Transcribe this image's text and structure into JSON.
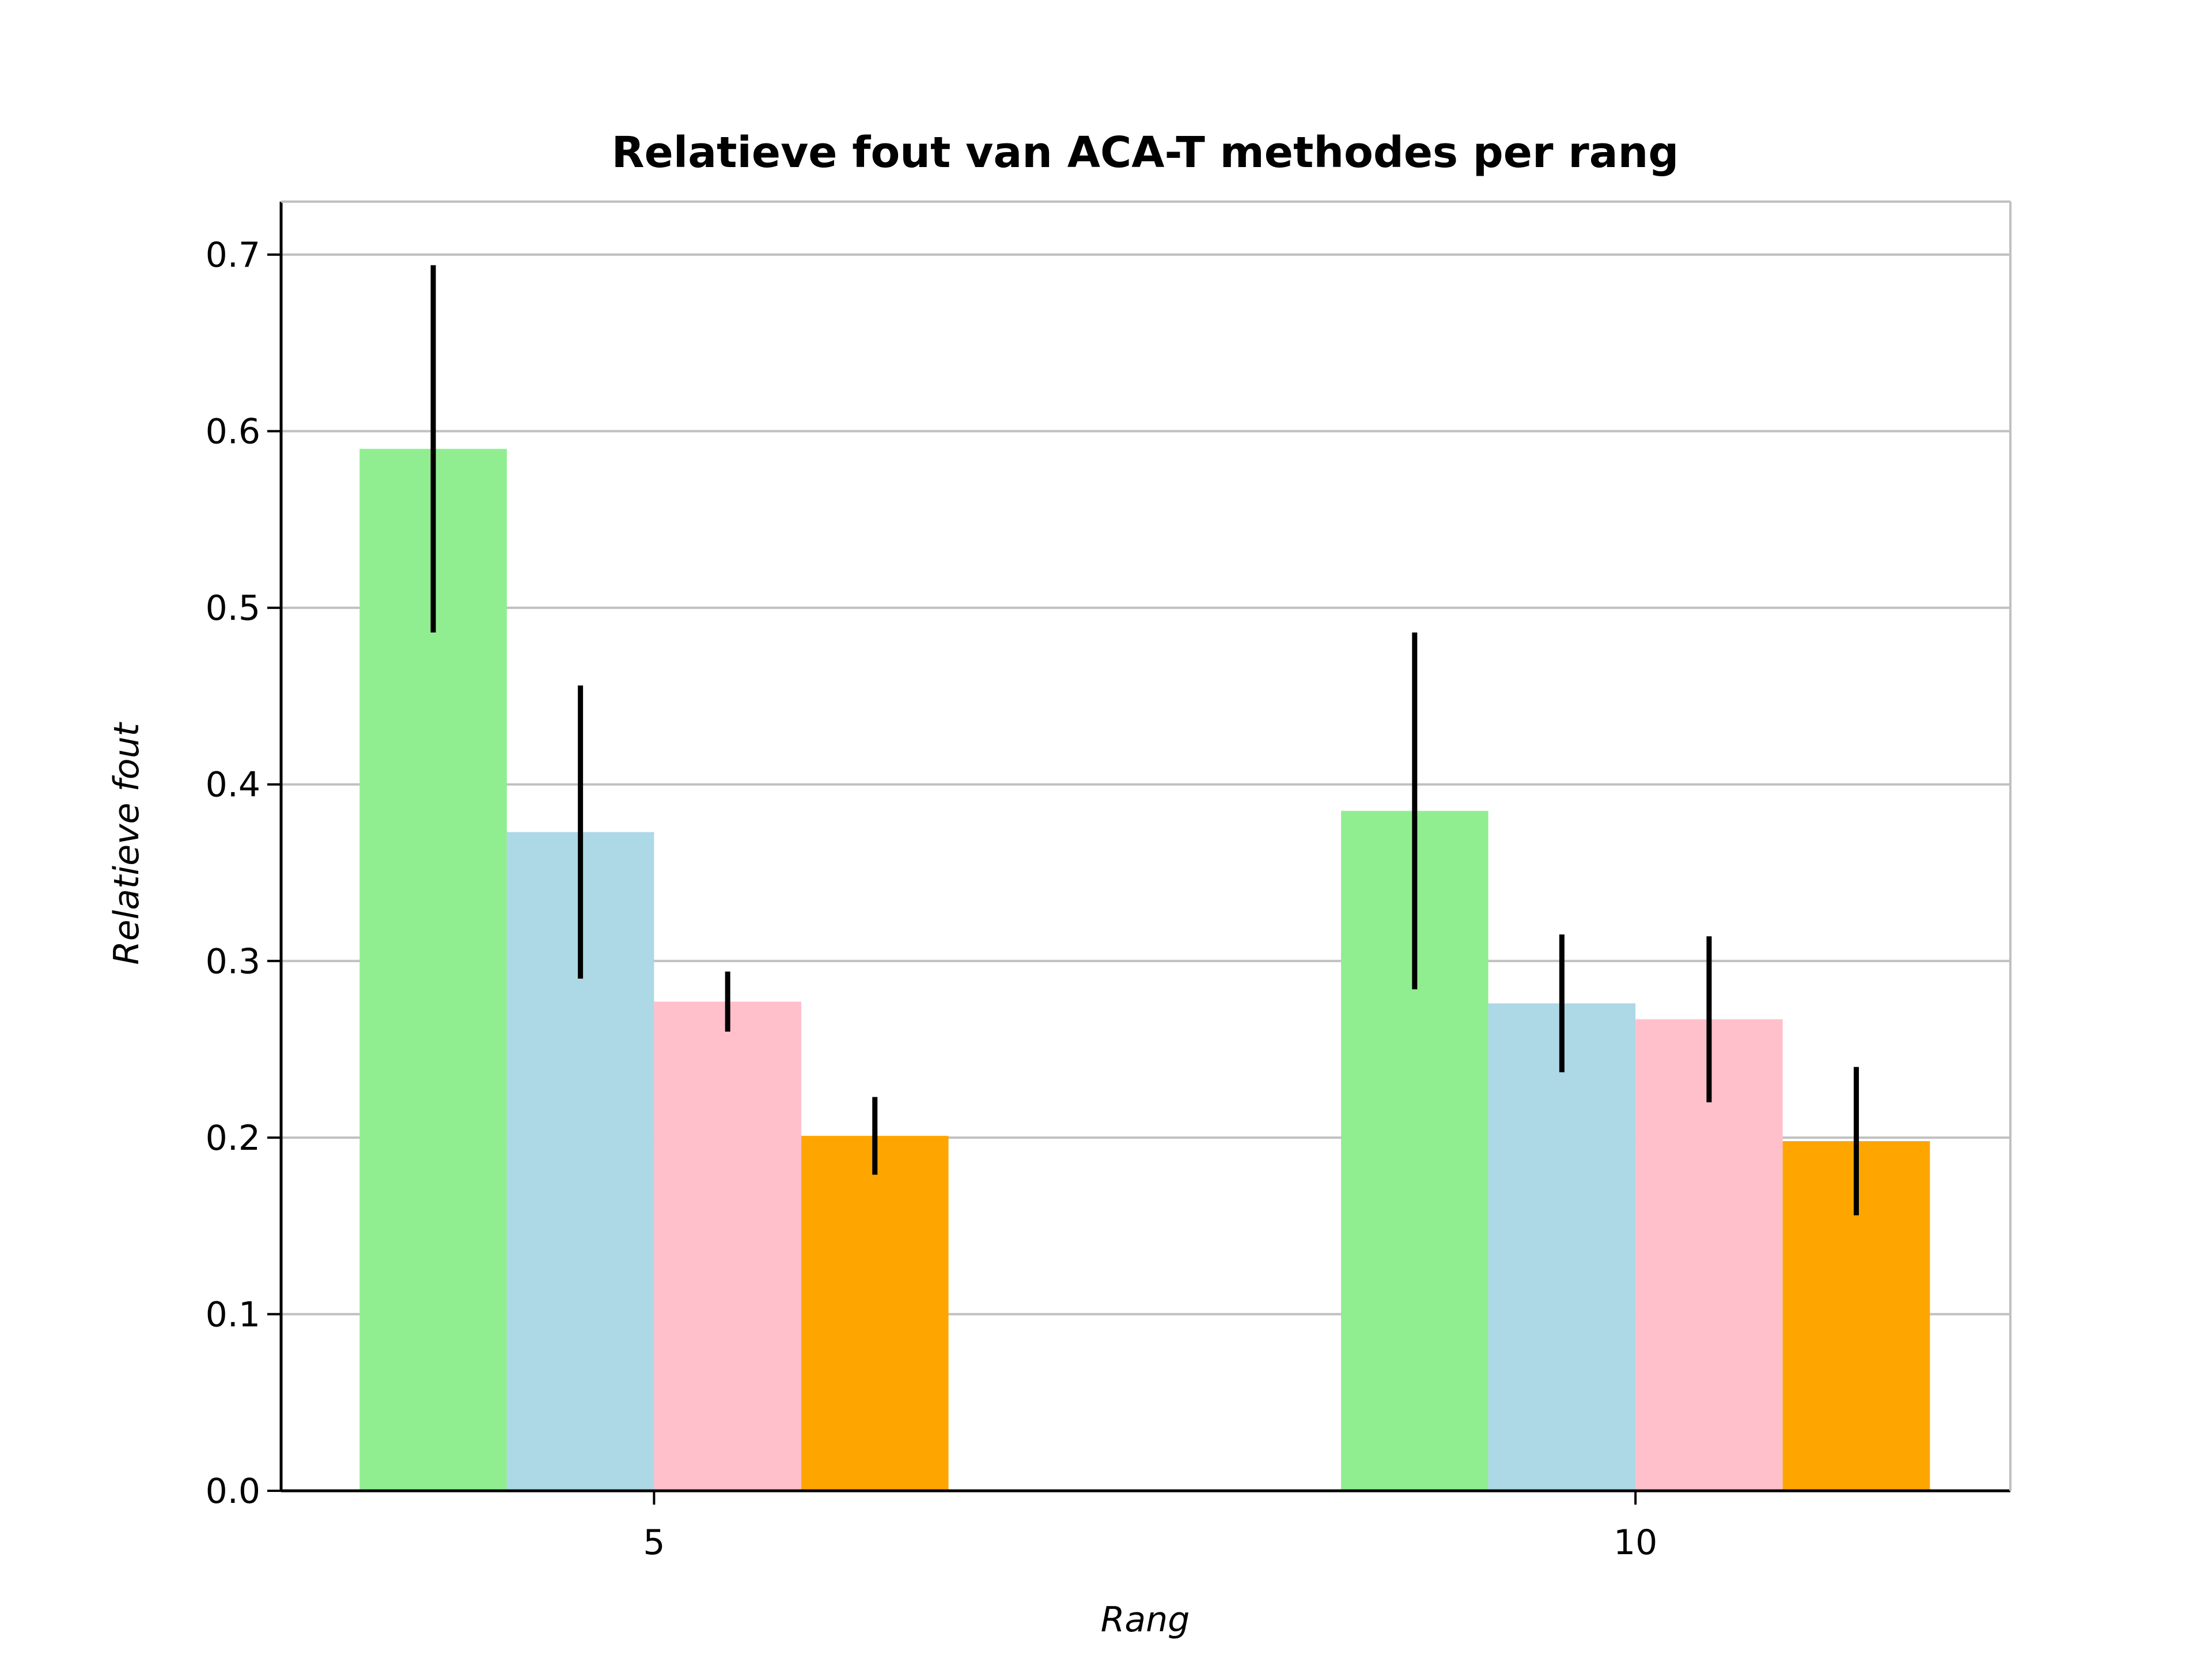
{
  "chart_data": {
    "type": "bar",
    "title": "Relatieve fout van ACA-T methodes per rang",
    "xlabel": "Rang",
    "ylabel": "Relatieve fout",
    "categories": [
      "5",
      "10"
    ],
    "ylim": [
      0,
      0.73
    ],
    "yticks": [
      "0.0",
      "0.1",
      "0.2",
      "0.3",
      "0.4",
      "0.5",
      "0.6",
      "0.7"
    ],
    "grid": "horizontal",
    "series": [
      {
        "color": "#90EE90",
        "values": [
          0.59,
          0.385
        ],
        "errors": [
          0.104,
          0.101
        ]
      },
      {
        "color": "#ADD8E6",
        "values": [
          0.373,
          0.276
        ],
        "errors": [
          0.083,
          0.039
        ]
      },
      {
        "color": "#FFC0CB",
        "values": [
          0.277,
          0.267
        ],
        "errors": [
          0.017,
          0.047
        ]
      },
      {
        "color": "#FFA500",
        "values": [
          0.201,
          0.198
        ],
        "errors": [
          0.022,
          0.042
        ]
      }
    ]
  }
}
